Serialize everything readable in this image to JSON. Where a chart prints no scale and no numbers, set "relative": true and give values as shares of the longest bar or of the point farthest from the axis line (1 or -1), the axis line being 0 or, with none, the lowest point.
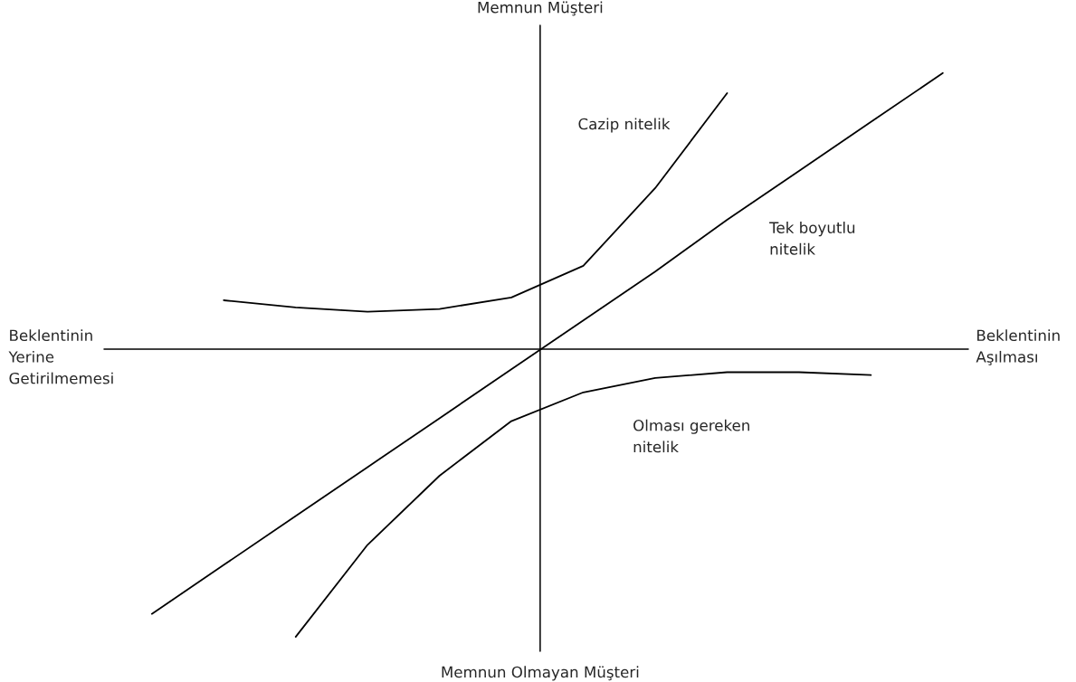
{
  "chart_data": {
    "type": "line",
    "relative": true,
    "legend": false,
    "marker": "none",
    "line_style": "solid",
    "categories": [
      null,
      null,
      null,
      null,
      null,
      null,
      null,
      null,
      null,
      null,
      null,
      null
    ],
    "annotations": [
      "Memnun Müşteri",
      "Memnun Olmayan Müşteri",
      "Beklentinin\nYerine\nGetirilmemesi",
      "Beklentinin\nAşılması"
    ],
    "series": [
      {
        "name": "Cazip nitelik",
        "color": "#000000",
        "values": [
          null,
          0.17,
          0.145,
          0.13,
          0.14,
          0.18,
          0.29,
          0.56,
          0.89,
          null,
          null,
          null
        ]
      },
      {
        "name": "Tek boyutlu\nnitelik",
        "color": "#000000",
        "values": [
          -0.92,
          -0.75,
          -0.58,
          -0.41,
          -0.24,
          -0.07,
          0.1,
          0.27,
          0.45,
          0.62,
          0.79,
          0.96
        ]
      },
      {
        "name": "Olması gereken\nnitelik",
        "color": "#000000",
        "values": [
          null,
          null,
          -1.0,
          -0.68,
          -0.44,
          -0.25,
          -0.15,
          -0.1,
          -0.08,
          -0.08,
          -0.09,
          null
        ]
      }
    ]
  }
}
